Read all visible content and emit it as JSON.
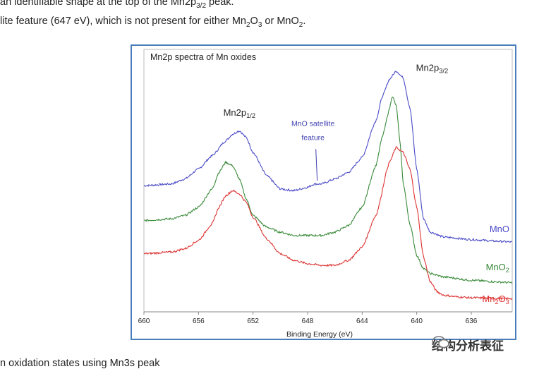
{
  "page": {
    "line1": {
      "pre": "an identifiable shape at the top of the Mn2p",
      "sub": "3/2",
      "post": " peak."
    },
    "line2": {
      "a": "lite feature (647 eV), which is not present for either Mn",
      "b": "2",
      "c": "O",
      "d": "3",
      "e": " or MnO",
      "f": "2",
      "g": "."
    },
    "line3": "n oxidation states using Mn3s peak"
  },
  "chart_data": {
    "type": "line",
    "title": "Mn2p spectra of Mn oxides",
    "xlabel": "Binding Energy (eV)",
    "ylabel": "",
    "x_reversed": true,
    "xlim": [
      660,
      633
    ],
    "xticks": [
      660,
      656,
      652,
      648,
      644,
      640,
      636
    ],
    "grid": false,
    "annotations": [
      {
        "text": "Mn2p",
        "sub": "1/2",
        "x": 653.0
      },
      {
        "text": "Mn2p",
        "sub": "3/2",
        "x": 641.5
      },
      {
        "text": "MnO satellite",
        "text2": "feature",
        "x": 647.5
      }
    ],
    "series": [
      {
        "name": "MnO",
        "label_sub": "",
        "color": "#4b4bc8",
        "x": [
          660,
          658,
          657,
          656,
          655,
          654,
          653.5,
          653,
          652.5,
          652,
          651,
          650,
          649,
          648,
          647.5,
          647,
          646,
          645,
          644,
          643,
          642.5,
          642,
          641.5,
          641,
          640.5,
          640,
          639.5,
          639,
          638,
          636,
          634,
          633
        ],
        "y": [
          0.68,
          0.69,
          0.72,
          0.78,
          0.86,
          0.95,
          0.99,
          1.01,
          0.97,
          0.88,
          0.74,
          0.66,
          0.65,
          0.67,
          0.69,
          0.69,
          0.72,
          0.76,
          0.85,
          1.07,
          1.22,
          1.32,
          1.37,
          1.33,
          1.15,
          0.78,
          0.48,
          0.4,
          0.37,
          0.355,
          0.345,
          0.34
        ]
      },
      {
        "name": "MnO",
        "label_sub": "2",
        "color": "#3a8a3a",
        "x": [
          660,
          658,
          657,
          656,
          655,
          654.5,
          654,
          653.5,
          653,
          652.5,
          652,
          651,
          650,
          649,
          648,
          647,
          646,
          645,
          644,
          643,
          642.5,
          642,
          641.8,
          641.5,
          641.2,
          641,
          640.5,
          640,
          639.5,
          639,
          638,
          636,
          634,
          633
        ],
        "y": [
          0.47,
          0.48,
          0.5,
          0.55,
          0.66,
          0.76,
          0.82,
          0.8,
          0.72,
          0.6,
          0.5,
          0.43,
          0.4,
          0.38,
          0.38,
          0.38,
          0.4,
          0.44,
          0.55,
          0.8,
          0.98,
          1.14,
          1.22,
          1.16,
          0.92,
          0.7,
          0.45,
          0.26,
          0.18,
          0.15,
          0.13,
          0.11,
          0.1,
          0.095
        ]
      },
      {
        "name": "Mn",
        "label_sub": "2",
        "label_post": "O",
        "label_sub2": "3",
        "color": "#dd3333",
        "x": [
          660,
          658,
          657,
          656,
          655,
          654.5,
          654,
          653.5,
          653,
          652.5,
          652,
          651,
          650,
          649,
          648,
          647,
          646,
          645,
          644,
          643,
          642,
          641.5,
          641,
          640.5,
          640,
          639.5,
          639,
          638.5,
          638,
          637,
          636,
          634,
          633
        ],
        "y": [
          0.27,
          0.28,
          0.3,
          0.35,
          0.45,
          0.55,
          0.62,
          0.65,
          0.63,
          0.58,
          0.49,
          0.36,
          0.27,
          0.23,
          0.21,
          0.2,
          0.2,
          0.23,
          0.31,
          0.5,
          0.82,
          0.91,
          0.88,
          0.78,
          0.55,
          0.25,
          0.1,
          0.04,
          0.02,
          0.01,
          0.005,
          0.0,
          0.0
        ]
      }
    ]
  }
}
